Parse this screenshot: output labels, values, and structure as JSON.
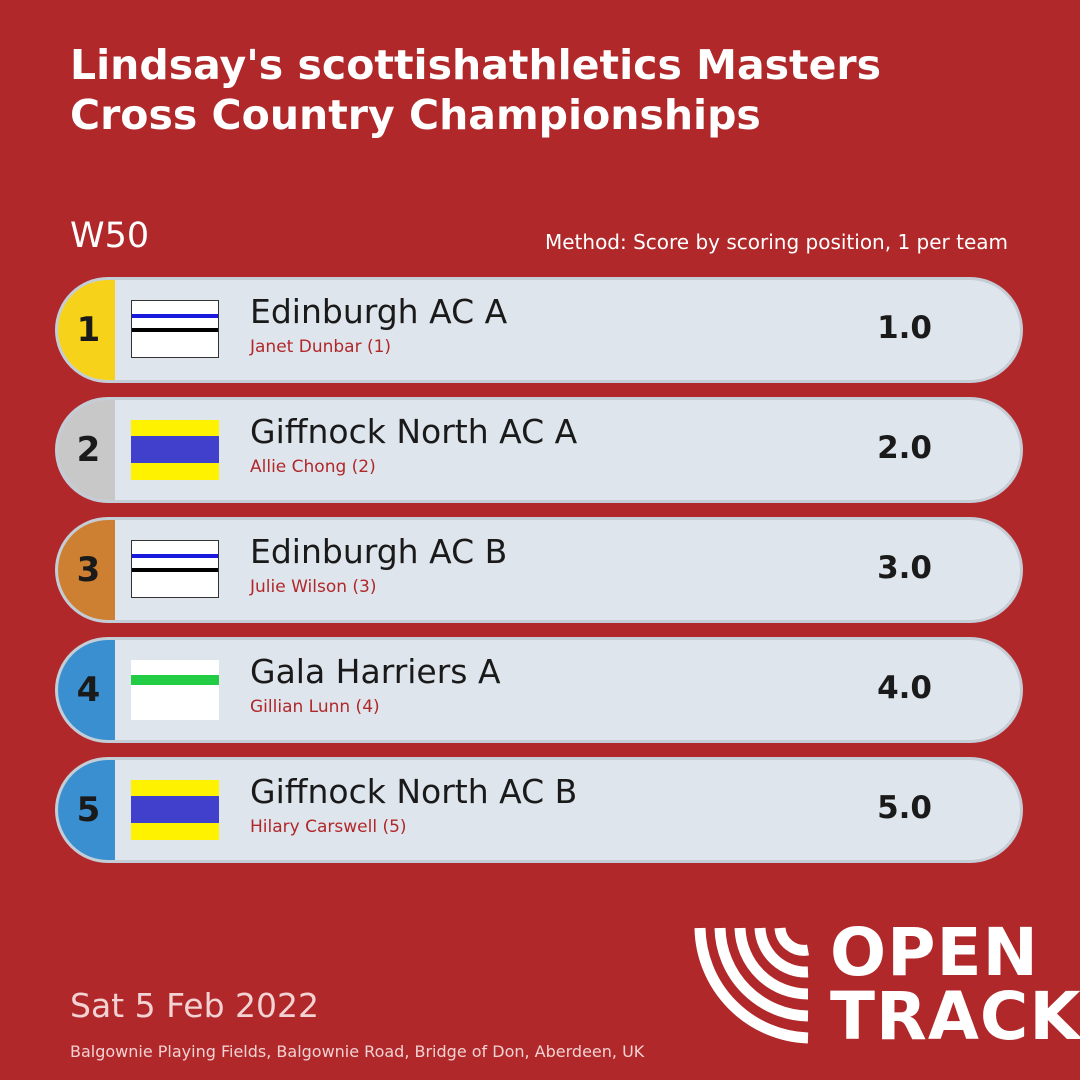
{
  "header": {
    "title_lines": [
      "Lindsay's scottishathletics Masters",
      "Cross Country Championships"
    ]
  },
  "category": "W50",
  "method": "Method: Score by scoring position, 1 per team",
  "results": [
    {
      "position": "1",
      "team": "Edinburgh AC A",
      "athlete": "Janet Dunbar (1)",
      "score": "1.0"
    },
    {
      "position": "2",
      "team": "Giffnock North AC A",
      "athlete": "Allie Chong (2)",
      "score": "2.0"
    },
    {
      "position": "3",
      "team": "Edinburgh AC B",
      "athlete": "Julie Wilson (3)",
      "score": "3.0"
    },
    {
      "position": "4",
      "team": "Gala Harriers A",
      "athlete": "Gillian Lunn (4)",
      "score": "4.0"
    },
    {
      "position": "5",
      "team": "Giffnock North AC B",
      "athlete": "Hilary Carswell (5)",
      "score": "5.0"
    }
  ],
  "footer": {
    "date": "Sat 5 Feb 2022",
    "venue": "Balgownie Playing Fields, Balgownie Road, Bridge of Don, Aberdeen, UK"
  },
  "logo": {
    "line1": "OPEN",
    "line2": "TRACK"
  }
}
